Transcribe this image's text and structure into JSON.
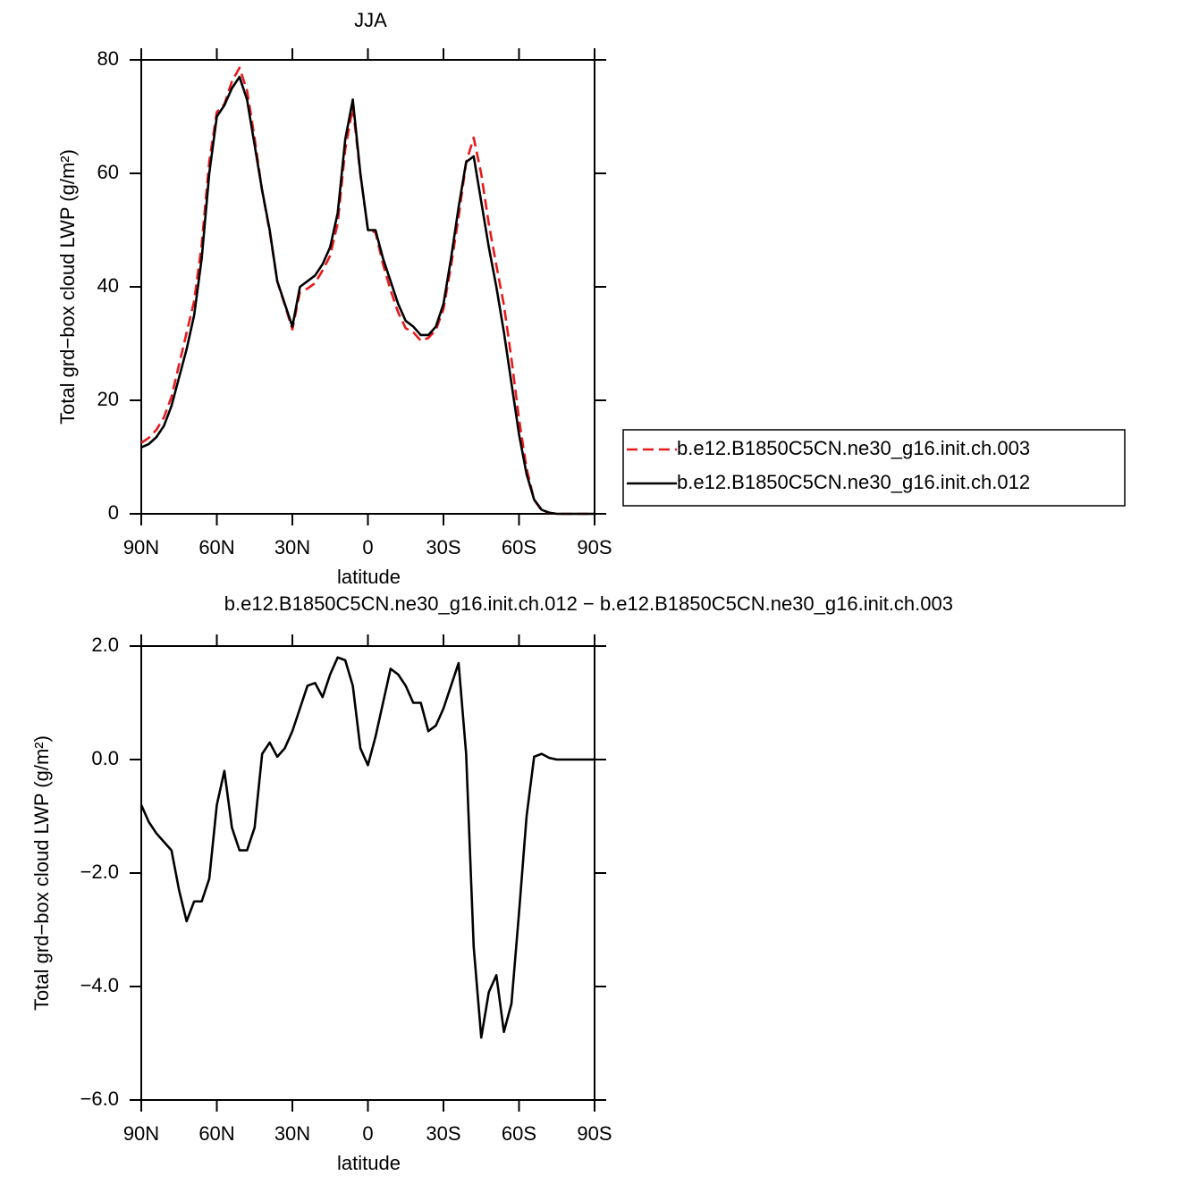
{
  "chart_data": [
    {
      "type": "line",
      "title": "JJA",
      "x_label": "latitude",
      "y_label": "Total grd−box cloud LWP (g/m²)",
      "x": [
        90,
        87,
        84,
        81,
        78,
        75,
        72,
        69,
        66,
        63,
        60,
        57,
        54,
        51,
        48,
        45,
        42,
        39,
        36,
        33,
        30,
        27,
        24,
        21,
        18,
        15,
        12,
        9,
        6,
        3,
        0,
        -3,
        -6,
        -9,
        -12,
        -15,
        -18,
        -21,
        -24,
        -27,
        -30,
        -33,
        -36,
        -39,
        -42,
        -45,
        -48,
        -51,
        -54,
        -57,
        -60,
        -63,
        -66,
        -69,
        -72,
        -75,
        -78,
        -81,
        -84,
        -87,
        -90
      ],
      "xlim": [
        90,
        -90
      ],
      "xticks": [
        {
          "value": 90,
          "label": "90N"
        },
        {
          "value": 60,
          "label": "60N"
        },
        {
          "value": 30,
          "label": "30N"
        },
        0,
        {
          "value": -30,
          "label": "30S"
        },
        {
          "value": -60,
          "label": "60S"
        },
        {
          "value": -90,
          "label": "90S"
        }
      ],
      "ylim": [
        0,
        80
      ],
      "yticks": [
        0,
        20,
        40,
        60,
        80
      ],
      "legend": "right",
      "series": [
        {
          "name": "b.e12.B1850C5CN.ne30_g16.init.ch.003",
          "color": "#e8191c",
          "dashed": true,
          "values": [
            12.5,
            13.4,
            14.8,
            17.0,
            20.6,
            26.3,
            31.9,
            37.5,
            47.5,
            62.1,
            70.8,
            72.2,
            76.2,
            78.6,
            74.6,
            66.2,
            56.9,
            49.7,
            40.95,
            36.8,
            32.5,
            39.1,
            39.7,
            40.65,
            42.9,
            45.5,
            51.2,
            64.25,
            71.7,
            59.8,
            50.1,
            49.6,
            44,
            39.4,
            35.5,
            32.7,
            32,
            30.5,
            31,
            32.4,
            36.1,
            43.7,
            52.3,
            61.9,
            66.3,
            59.9,
            51.1,
            43.8,
            36.8,
            27.3,
            16.7,
            8,
            2.45,
            0.6,
            0.17,
            0,
            0,
            0,
            0,
            0,
            0
          ]
        },
        {
          "name": "b.e12.B1850C5CN.ne30_g16.init.ch.012",
          "color": "#000000",
          "dashed": false,
          "values": [
            11.7,
            12.3,
            13.5,
            15.5,
            19,
            24,
            29,
            35,
            45,
            60,
            70,
            72,
            75,
            77,
            73,
            65,
            57,
            50,
            41,
            37,
            33,
            40,
            41,
            42,
            44,
            47,
            53,
            66,
            73,
            60,
            50,
            50,
            45,
            41,
            37,
            34,
            33,
            31.5,
            31.5,
            33,
            37,
            45,
            54,
            62,
            63,
            55,
            47,
            40,
            32,
            23,
            14,
            7,
            2.5,
            0.7,
            0.2,
            0,
            0,
            0,
            0,
            0,
            0
          ]
        }
      ]
    },
    {
      "type": "line",
      "title": "b.e12.B1850C5CN.ne30_g16.init.ch.012 − b.e12.B1850C5CN.ne30_g16.init.ch.003",
      "x_label": "latitude",
      "y_label": "Total grd−box cloud LWP (g/m²)",
      "x": [
        90,
        87,
        84,
        81,
        78,
        75,
        72,
        69,
        66,
        63,
        60,
        57,
        54,
        51,
        48,
        45,
        42,
        39,
        36,
        33,
        30,
        27,
        24,
        21,
        18,
        15,
        12,
        9,
        6,
        3,
        0,
        -3,
        -6,
        -9,
        -12,
        -15,
        -18,
        -21,
        -24,
        -27,
        -30,
        -33,
        -36,
        -39,
        -42,
        -45,
        -48,
        -51,
        -54,
        -57,
        -60,
        -63,
        -66,
        -69,
        -72,
        -75,
        -78,
        -81,
        -84,
        -87,
        -90
      ],
      "xlim": [
        90,
        -90
      ],
      "xticks": [
        {
          "value": 90,
          "label": "90N"
        },
        {
          "value": 60,
          "label": "60N"
        },
        {
          "value": 30,
          "label": "30N"
        },
        0,
        {
          "value": -30,
          "label": "30S"
        },
        {
          "value": -60,
          "label": "60S"
        },
        {
          "value": -90,
          "label": "90S"
        }
      ],
      "ylim": [
        -6,
        2
      ],
      "yticks": [
        {
          "value": -6,
          "label": "−6.0"
        },
        {
          "value": -4,
          "label": "−4.0"
        },
        {
          "value": -2,
          "label": "−2.0"
        },
        {
          "value": 0,
          "label": "0.0"
        },
        {
          "value": 2,
          "label": "2.0"
        }
      ],
      "color": "#000000",
      "values": [
        -0.8,
        -1.1,
        -1.3,
        -1.45,
        -1.6,
        -2.3,
        -2.85,
        -2.5,
        -2.5,
        -2.1,
        -0.8,
        -0.2,
        -1.2,
        -1.6,
        -1.6,
        -1.2,
        0.1,
        0.3,
        0.05,
        0.2,
        0.5,
        0.9,
        1.3,
        1.35,
        1.1,
        1.5,
        1.8,
        1.75,
        1.3,
        0.2,
        -0.1,
        0.4,
        1.0,
        1.6,
        1.5,
        1.3,
        1.0,
        1.0,
        0.5,
        0.6,
        0.9,
        1.3,
        1.7,
        0.1,
        -3.3,
        -4.9,
        -4.1,
        -3.8,
        -4.8,
        -4.3,
        -2.7,
        -1.0,
        0.05,
        0.1,
        0.03,
        0,
        0,
        0,
        0,
        0,
        0
      ]
    }
  ]
}
